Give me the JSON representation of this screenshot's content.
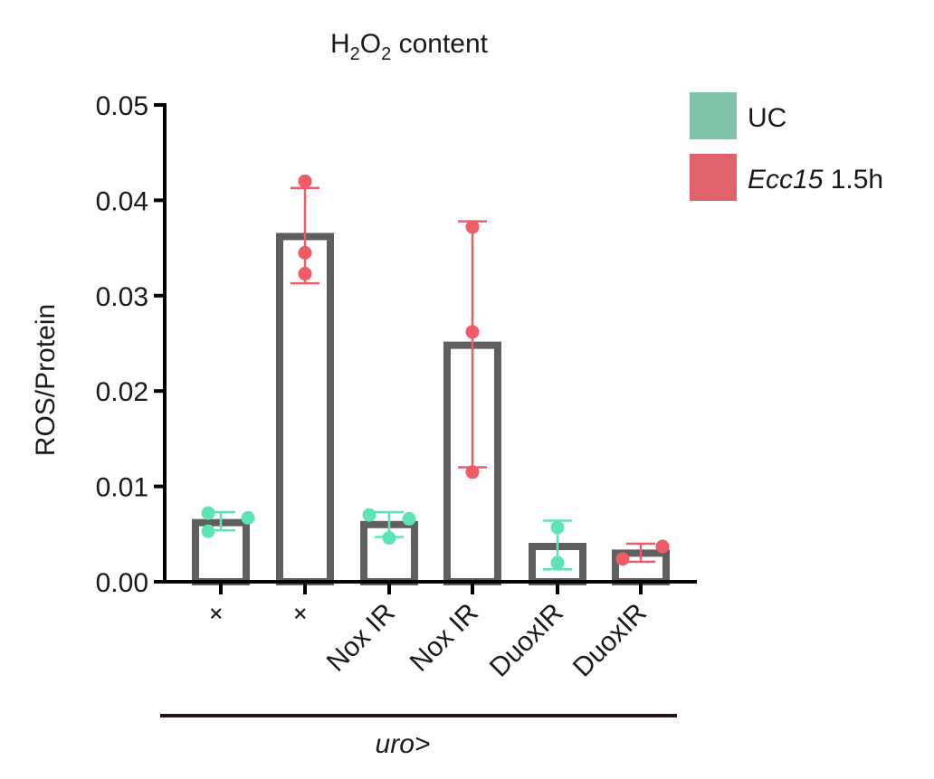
{
  "chart_data": {
    "type": "bar",
    "title": {
      "parts": [
        {
          "text": "H",
          "sub": false
        },
        {
          "text": "2",
          "sub": true
        },
        {
          "text": "O",
          "sub": false
        },
        {
          "text": "2",
          "sub": true
        },
        {
          "text": " content",
          "sub": false
        }
      ]
    },
    "ylabel": "ROS/Protein",
    "ylim": [
      0,
      0.05
    ],
    "yticks": [
      "0.00",
      "0.01",
      "0.02",
      "0.03",
      "0.04",
      "0.05"
    ],
    "grid": false,
    "legend_position": "top-right",
    "legend": [
      {
        "label_italic": "",
        "label": "UC",
        "color": "#7fc3a9"
      },
      {
        "label_italic": "Ecc15",
        "label": " 1.5h",
        "color": "#e0636b"
      }
    ],
    "point_colors": {
      "UC": "#5de4b3",
      "Ecc15 1.5h": "#f05c65"
    },
    "categories": [
      "+",
      "+",
      "Nox IR",
      "Nox IR",
      "DuoxIR",
      "DuoxIR"
    ],
    "bars": [
      {
        "category": "+",
        "condition": "UC",
        "mean": 0.0062,
        "sd_low": 0.0054,
        "sd_high": 0.0073,
        "points": [
          0.0072,
          0.0067,
          0.0053
        ]
      },
      {
        "category": "+",
        "condition": "Ecc15 1.5h",
        "mean": 0.0362,
        "sd_low": 0.0313,
        "sd_high": 0.0413,
        "points": [
          0.042,
          0.0345,
          0.0323
        ]
      },
      {
        "category": "Nox IR",
        "condition": "UC",
        "mean": 0.006,
        "sd_low": 0.0047,
        "sd_high": 0.0073,
        "points": [
          0.007,
          0.0066,
          0.0046
        ]
      },
      {
        "category": "Nox IR",
        "condition": "Ecc15 1.5h",
        "mean": 0.0248,
        "sd_low": 0.012,
        "sd_high": 0.0378,
        "points": [
          0.0372,
          0.0262,
          0.0115
        ]
      },
      {
        "category": "DuoxIR",
        "condition": "UC",
        "mean": 0.0037,
        "sd_low": 0.0013,
        "sd_high": 0.0064,
        "points": [
          0.0057,
          0.002
        ]
      },
      {
        "category": "DuoxIR",
        "condition": "Ecc15 1.5h",
        "mean": 0.003,
        "sd_low": 0.0021,
        "sd_high": 0.004,
        "points": [
          0.0037,
          0.0024
        ]
      }
    ],
    "group_label": "uro>"
  }
}
